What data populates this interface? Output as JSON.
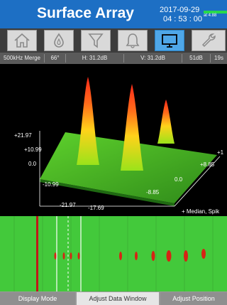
{
  "header": {
    "title": "Surface Array",
    "date": "2017-09-29",
    "time": "04 : 53 : 00",
    "battery_text": "at 4.88",
    "color": "#1d6fc4",
    "battery_color": "#27d94a"
  },
  "toolbar": {
    "buttons": [
      {
        "icon": "home-icon",
        "active": false
      },
      {
        "icon": "drop-icon",
        "active": false
      },
      {
        "icon": "filter-icon",
        "active": false
      },
      {
        "icon": "bell-icon",
        "active": false
      },
      {
        "icon": "monitor-icon",
        "active": true
      },
      {
        "icon": "wrench-icon",
        "active": false
      }
    ]
  },
  "status": {
    "items": [
      "500kHz Merge",
      "66°",
      "H: 31.2dB",
      "V: 31.2dB",
      "51dB",
      "19s"
    ]
  },
  "plot3d": {
    "y_ticks": [
      "+21.97",
      "+10.99",
      "0.0",
      "-10.99",
      "-21.97"
    ],
    "x_ticks": [
      "-17.69",
      "-8.85",
      "0.0",
      "+8.85",
      "+1"
    ],
    "filter_label": "+ Median, Spik"
  },
  "bottom": {
    "buttons": [
      "Display Mode",
      "Adjust Data Window",
      "Adjust Position"
    ],
    "active_index": 1
  }
}
